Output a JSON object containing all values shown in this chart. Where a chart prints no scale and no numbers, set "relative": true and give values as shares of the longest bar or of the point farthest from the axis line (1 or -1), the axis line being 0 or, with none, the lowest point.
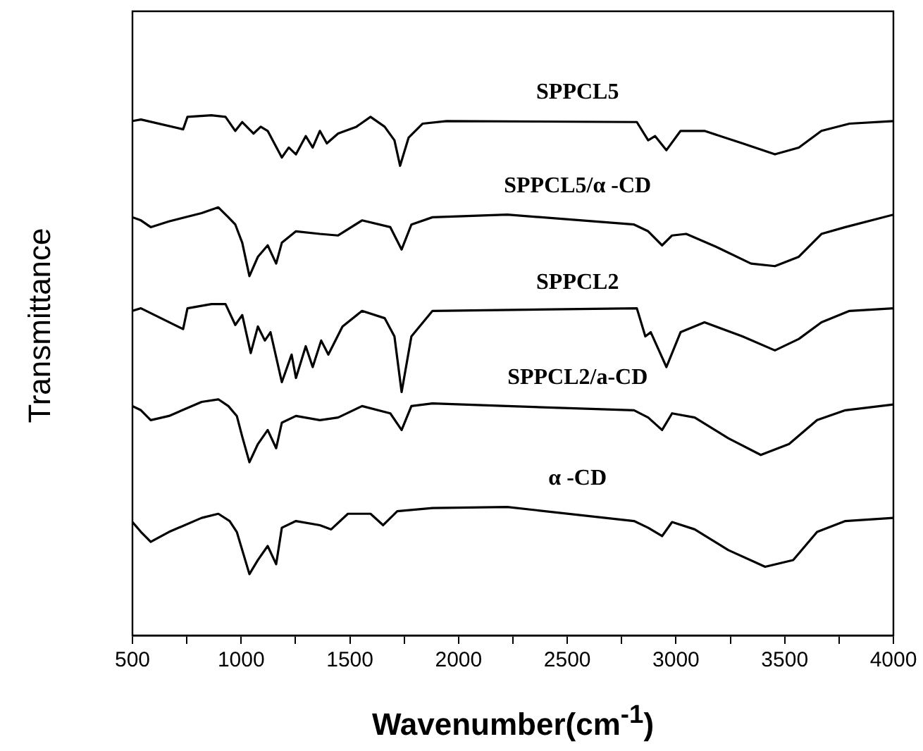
{
  "chart_data": {
    "type": "line",
    "relative": true,
    "xlabel": "Wavenumber(cm$^{-1}$)",
    "ylabel": "Transmittance",
    "xlim": [
      500,
      4000
    ],
    "xticks": [
      500,
      {
        "value": 750,
        "label": null
      },
      1000,
      {
        "value": 1250,
        "label": null
      },
      1500,
      {
        "value": 1750,
        "label": null
      },
      2000,
      {
        "value": 2250,
        "label": null
      },
      2500,
      {
        "value": 2750,
        "label": null
      },
      3000,
      {
        "value": 3250,
        "label": null
      },
      3500,
      {
        "value": 3750,
        "label": null
      },
      4000
    ],
    "grid": false,
    "legend": false,
    "marker": "none",
    "line_style": "solid",
    "series": [
      {
        "name": "SPPCL5",
        "color": "#000000",
        "x": [
          500,
          539,
          733,
          753,
          863,
          928,
          973,
          1005,
          1057,
          1090,
          1122,
          1187,
          1219,
          1252,
          1297,
          1329,
          1362,
          1394,
          1446,
          1530,
          1595,
          1660,
          1705,
          1731,
          1770,
          1835,
          1945,
          2820,
          2872,
          2904,
          2956,
          3021,
          3131,
          3306,
          3455,
          3565,
          3669,
          3798,
          4000
        ],
        "values": [
          0.989,
          0.992,
          0.973,
          0.997,
          1.0,
          0.997,
          0.97,
          0.987,
          0.965,
          0.978,
          0.97,
          0.919,
          0.938,
          0.925,
          0.96,
          0.938,
          0.97,
          0.946,
          0.965,
          0.978,
          0.997,
          0.978,
          0.952,
          0.903,
          0.957,
          0.984,
          0.989,
          0.987,
          0.952,
          0.96,
          0.933,
          0.97,
          0.97,
          0.946,
          0.925,
          0.938,
          0.97,
          0.984,
          0.989
        ]
      },
      {
        "name": "SPPCL5/α -CD",
        "color": "#000000",
        "x": [
          500,
          539,
          584,
          668,
          818,
          895,
          941,
          973,
          1005,
          1038,
          1077,
          1122,
          1161,
          1187,
          1252,
          1362,
          1446,
          1556,
          1686,
          1738,
          1783,
          1880,
          2224,
          2807,
          2872,
          2936,
          2982,
          3047,
          3196,
          3345,
          3455,
          3565,
          3669,
          3779,
          4000
        ],
        "values": [
          0.804,
          0.798,
          0.785,
          0.796,
          0.812,
          0.823,
          0.804,
          0.79,
          0.755,
          0.691,
          0.728,
          0.75,
          0.715,
          0.755,
          0.777,
          0.772,
          0.769,
          0.798,
          0.785,
          0.742,
          0.79,
          0.804,
          0.809,
          0.79,
          0.777,
          0.75,
          0.769,
          0.772,
          0.745,
          0.715,
          0.71,
          0.728,
          0.772,
          0.785,
          0.809
        ]
      },
      {
        "name": "SPPCL2",
        "color": "#000000",
        "x": [
          500,
          539,
          733,
          753,
          863,
          928,
          973,
          1005,
          1044,
          1077,
          1109,
          1135,
          1187,
          1232,
          1252,
          1297,
          1329,
          1368,
          1401,
          1466,
          1556,
          1660,
          1705,
          1738,
          1783,
          1880,
          2820,
          2859,
          2884,
          2956,
          3021,
          3131,
          3306,
          3455,
          3565,
          3669,
          3798,
          4000
        ],
        "values": [
          0.624,
          0.629,
          0.589,
          0.629,
          0.637,
          0.637,
          0.597,
          0.616,
          0.543,
          0.594,
          0.567,
          0.583,
          0.487,
          0.54,
          0.495,
          0.556,
          0.516,
          0.567,
          0.54,
          0.594,
          0.624,
          0.61,
          0.575,
          0.468,
          0.575,
          0.624,
          0.629,
          0.575,
          0.583,
          0.516,
          0.583,
          0.602,
          0.575,
          0.548,
          0.57,
          0.602,
          0.624,
          0.629
        ]
      },
      {
        "name": "SPPCL2/a-CD",
        "color": "#000000",
        "x": [
          500,
          539,
          584,
          668,
          818,
          895,
          941,
          980,
          1005,
          1038,
          1077,
          1122,
          1161,
          1187,
          1252,
          1362,
          1446,
          1556,
          1686,
          1738,
          1783,
          1880,
          2224,
          2807,
          2872,
          2936,
          2982,
          3086,
          3241,
          3390,
          3520,
          3649,
          3779,
          4000
        ],
        "values": [
          0.441,
          0.433,
          0.414,
          0.422,
          0.449,
          0.454,
          0.441,
          0.422,
          0.382,
          0.333,
          0.368,
          0.395,
          0.36,
          0.409,
          0.422,
          0.414,
          0.419,
          0.441,
          0.427,
          0.395,
          0.441,
          0.446,
          0.441,
          0.433,
          0.419,
          0.395,
          0.427,
          0.419,
          0.379,
          0.347,
          0.368,
          0.414,
          0.433,
          0.444
        ]
      },
      {
        "name": "α -CD",
        "color": "#000000",
        "x": [
          500,
          539,
          584,
          668,
          818,
          895,
          947,
          980,
          1005,
          1038,
          1077,
          1122,
          1161,
          1187,
          1252,
          1362,
          1414,
          1491,
          1595,
          1653,
          1718,
          1880,
          2224,
          2807,
          2872,
          2936,
          2982,
          3086,
          3241,
          3410,
          3539,
          3649,
          3779,
          4000
        ],
        "values": [
          0.218,
          0.199,
          0.18,
          0.199,
          0.226,
          0.234,
          0.22,
          0.199,
          0.164,
          0.118,
          0.145,
          0.172,
          0.137,
          0.207,
          0.22,
          0.212,
          0.204,
          0.234,
          0.234,
          0.212,
          0.239,
          0.245,
          0.247,
          0.22,
          0.207,
          0.191,
          0.218,
          0.204,
          0.164,
          0.132,
          0.145,
          0.199,
          0.22,
          0.226
        ]
      }
    ]
  }
}
